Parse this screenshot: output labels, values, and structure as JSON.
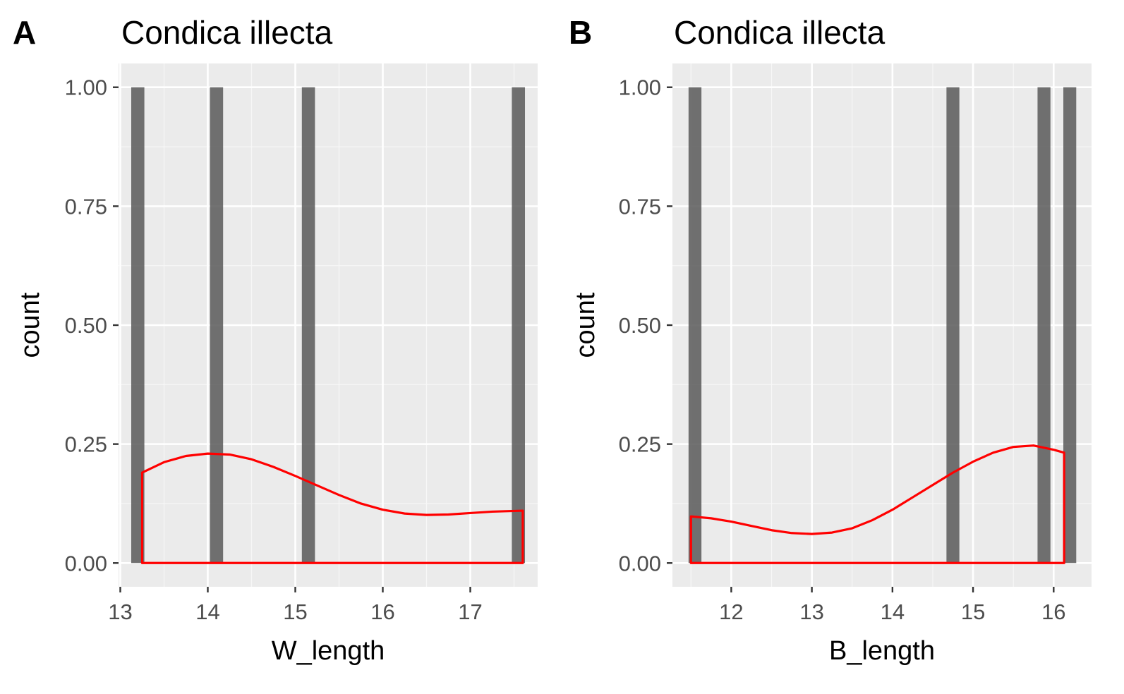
{
  "chart_data": [
    {
      "panel_label": "A",
      "type": "bar",
      "title": "Condica illecta",
      "xlabel": "W_length",
      "ylabel": "count",
      "xlim": [
        12.98,
        17.77
      ],
      "ylim": [
        -0.05,
        1.05
      ],
      "x_ticks": [
        13,
        14,
        15,
        16,
        17
      ],
      "x_tick_labels": [
        "13",
        "14",
        "15",
        "16",
        "17"
      ],
      "y_ticks": [
        0,
        0.25,
        0.5,
        0.75,
        1
      ],
      "y_tick_labels": [
        "0.00",
        "0.25",
        "0.50",
        "0.75",
        "1.00"
      ],
      "grid": true,
      "bars": [
        {
          "x": 13.2,
          "width": 0.15,
          "value": 1
        },
        {
          "x": 14.1,
          "width": 0.15,
          "value": 1
        },
        {
          "x": 15.15,
          "width": 0.15,
          "value": 1
        },
        {
          "x": 17.55,
          "width": 0.15,
          "value": 1
        }
      ],
      "density_line": {
        "color": "#ff0000",
        "x": [
          13.25,
          13.5,
          13.75,
          14.0,
          14.25,
          14.5,
          14.75,
          15.0,
          15.25,
          15.5,
          15.75,
          16.0,
          16.25,
          16.5,
          16.75,
          17.0,
          17.25,
          17.6
        ],
        "y": [
          0.19,
          0.212,
          0.225,
          0.23,
          0.228,
          0.218,
          0.202,
          0.183,
          0.163,
          0.143,
          0.125,
          0.112,
          0.104,
          0.101,
          0.102,
          0.105,
          0.108,
          0.11
        ]
      }
    },
    {
      "panel_label": "B",
      "type": "bar",
      "title": "Condica illecta",
      "xlabel": "B_length",
      "ylabel": "count",
      "xlim": [
        11.27,
        16.47
      ],
      "ylim": [
        -0.05,
        1.05
      ],
      "x_ticks": [
        12,
        13,
        14,
        15,
        16
      ],
      "x_tick_labels": [
        "12",
        "13",
        "14",
        "15",
        "16"
      ],
      "y_ticks": [
        0,
        0.25,
        0.5,
        0.75,
        1
      ],
      "y_tick_labels": [
        "0.00",
        "0.25",
        "0.50",
        "0.75",
        "1.00"
      ],
      "grid": true,
      "bars": [
        {
          "x": 11.55,
          "width": 0.16,
          "value": 1
        },
        {
          "x": 14.75,
          "width": 0.16,
          "value": 1
        },
        {
          "x": 15.88,
          "width": 0.16,
          "value": 1
        },
        {
          "x": 16.2,
          "width": 0.16,
          "value": 1
        }
      ],
      "density_line": {
        "color": "#ff0000",
        "x": [
          11.5,
          11.75,
          12.0,
          12.25,
          12.5,
          12.75,
          13.0,
          13.25,
          13.5,
          13.75,
          14.0,
          14.25,
          14.5,
          14.75,
          15.0,
          15.25,
          15.5,
          15.75,
          16.0,
          16.13
        ],
        "y": [
          0.098,
          0.094,
          0.087,
          0.078,
          0.069,
          0.063,
          0.061,
          0.064,
          0.073,
          0.09,
          0.112,
          0.138,
          0.164,
          0.19,
          0.213,
          0.232,
          0.244,
          0.247,
          0.238,
          0.232
        ]
      }
    }
  ]
}
